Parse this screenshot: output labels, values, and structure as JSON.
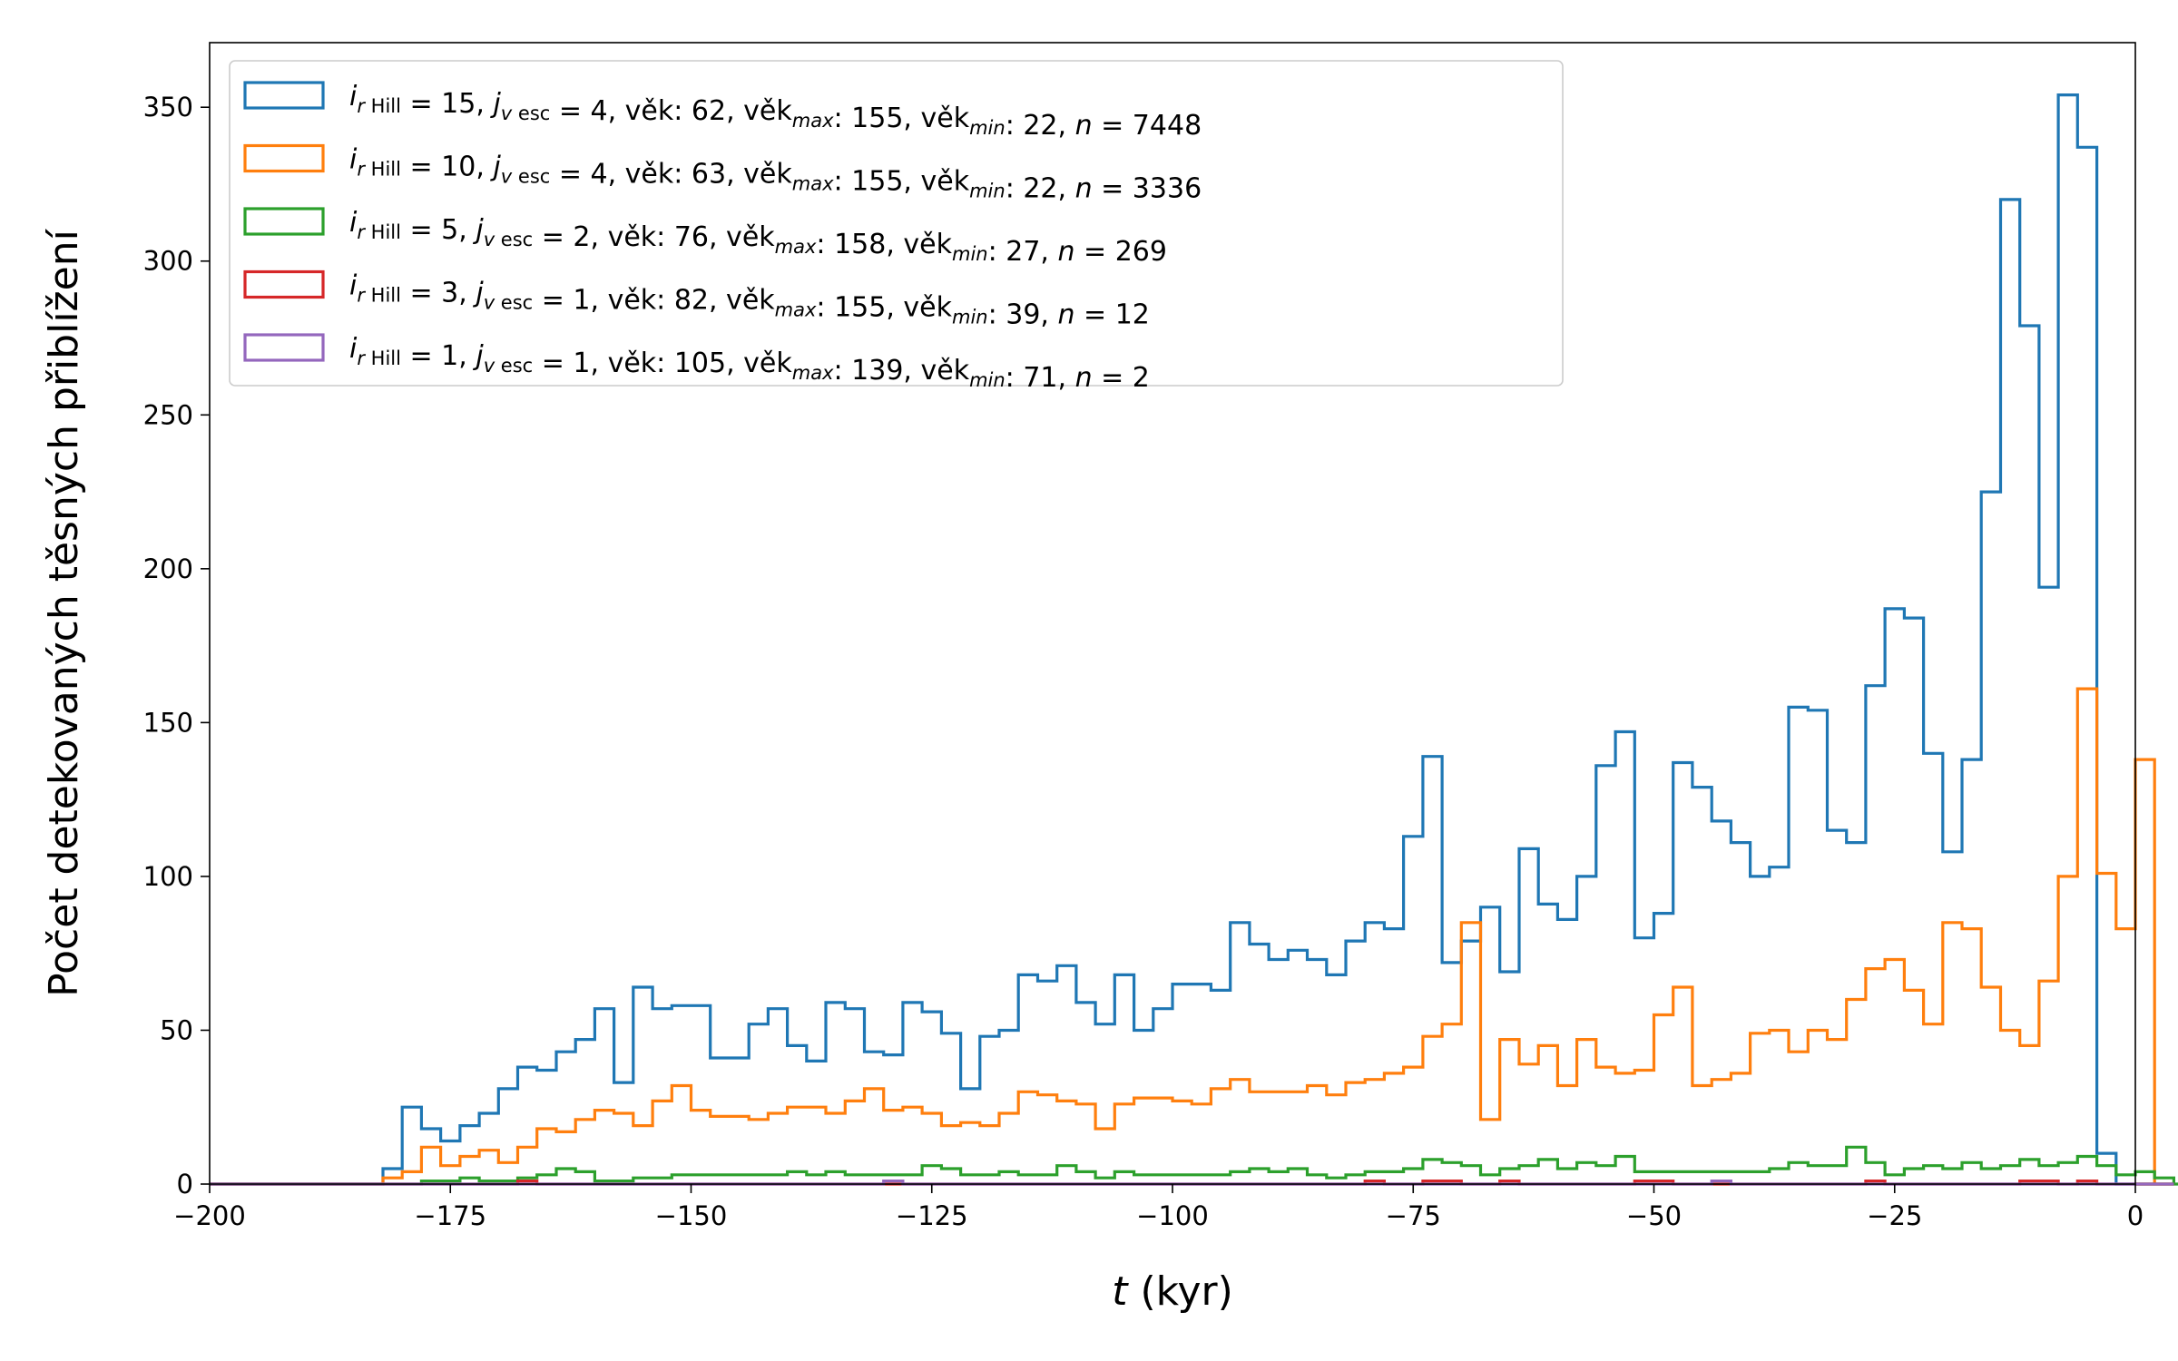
{
  "chart_data": {
    "type": "histogram-step",
    "xlabel_var": "t",
    "xlabel_unit": " (kyr)",
    "ylabel": "Počet detekovaných těsných přiblížení",
    "xlim": [
      -200,
      0
    ],
    "ylim": [
      0,
      371
    ],
    "xticks": [
      -200,
      -175,
      -150,
      -125,
      -100,
      -75,
      -50,
      -25,
      0
    ],
    "xtick_labels": [
      "−200",
      "−175",
      "−150",
      "−125",
      "−100",
      "−75",
      "−50",
      "−25",
      "0"
    ],
    "yticks": [
      0,
      50,
      100,
      150,
      200,
      250,
      300,
      350
    ],
    "ytick_labels": [
      "0",
      "50",
      "100",
      "150",
      "200",
      "250",
      "300",
      "350"
    ],
    "grid": false,
    "legend_position": "upper-left",
    "bins": {
      "start": -200,
      "width": 2
    },
    "series": [
      {
        "color": "#1f77b4",
        "legend": {
          "i": "15",
          "j": "4",
          "vek": "62",
          "vekmax": "155",
          "vekmin": "22",
          "n": "7448",
          "i_pad": "",
          "vek_pad": " "
        },
        "start_x": -182,
        "values": [
          5,
          25,
          18,
          14,
          19,
          23,
          31,
          38,
          37,
          43,
          47,
          57,
          33,
          64,
          57,
          58,
          58,
          41,
          41,
          52,
          57,
          45,
          40,
          59,
          57,
          43,
          42,
          59,
          56,
          49,
          31,
          48,
          50,
          68,
          66,
          71,
          59,
          52,
          68,
          50,
          57,
          65,
          65,
          63,
          85,
          78,
          73,
          76,
          73,
          68,
          79,
          85,
          83,
          113,
          139,
          72,
          79,
          90,
          69,
          109,
          91,
          86,
          100,
          136,
          147,
          80,
          88,
          137,
          129,
          118,
          111,
          100,
          103,
          155,
          154,
          115,
          111,
          162,
          187,
          184,
          140,
          108,
          138,
          225,
          320,
          279,
          194,
          354,
          337,
          10,
          0
        ]
      },
      {
        "color": "#ff7f0e",
        "legend": {
          "i": "10",
          "j": "4",
          "vek": "63",
          "vekmax": "155",
          "vekmin": "22",
          "n": "3336",
          "i_pad": "",
          "vek_pad": " "
        },
        "start_x": -182,
        "values": [
          2,
          4,
          12,
          6,
          9,
          11,
          7,
          12,
          18,
          17,
          21,
          24,
          23,
          19,
          27,
          32,
          24,
          22,
          22,
          21,
          23,
          25,
          25,
          23,
          27,
          31,
          24,
          25,
          23,
          19,
          20,
          19,
          23,
          30,
          29,
          27,
          26,
          18,
          26,
          28,
          28,
          27,
          26,
          31,
          34,
          30,
          30,
          30,
          32,
          29,
          33,
          34,
          36,
          38,
          48,
          52,
          85,
          21,
          47,
          39,
          45,
          32,
          47,
          38,
          36,
          37,
          55,
          64,
          32,
          34,
          36,
          49,
          50,
          43,
          50,
          47,
          60,
          70,
          73,
          63,
          52,
          85,
          83,
          64,
          50,
          45,
          66,
          100,
          161,
          101,
          83,
          138,
          0
        ]
      },
      {
        "color": "#2ca02c",
        "legend": {
          "i": "5",
          "j": "2",
          "vek": "76",
          "vekmax": "158",
          "vekmin": "27",
          "n": "269",
          "i_pad": "  ",
          "vek_pad": " "
        },
        "start_x": -182,
        "values": [
          0,
          0,
          1,
          1,
          2,
          1,
          1,
          2,
          3,
          5,
          4,
          1,
          1,
          2,
          2,
          3,
          3,
          3,
          3,
          3,
          3,
          4,
          3,
          4,
          3,
          3,
          3,
          3,
          6,
          5,
          3,
          3,
          4,
          3,
          3,
          6,
          4,
          2,
          4,
          3,
          3,
          3,
          3,
          3,
          4,
          5,
          4,
          5,
          3,
          2,
          3,
          4,
          4,
          5,
          8,
          7,
          6,
          3,
          5,
          6,
          8,
          5,
          7,
          6,
          9,
          4,
          4,
          4,
          4,
          4,
          4,
          4,
          5,
          7,
          6,
          6,
          12,
          7,
          3,
          5,
          6,
          5,
          7,
          5,
          6,
          8,
          6,
          7,
          9,
          6,
          3,
          4,
          2,
          0
        ]
      },
      {
        "color": "#d62728",
        "legend": {
          "i": "3",
          "j": "1",
          "vek": "82",
          "vekmax": "155",
          "vekmin": "39",
          "n": "12",
          "i_pad": "  ",
          "vek_pad": " "
        },
        "start_x": -182,
        "values": [
          0,
          0,
          0,
          0,
          0,
          0,
          0,
          1,
          0,
          0,
          0,
          0,
          0,
          0,
          0,
          0,
          0,
          0,
          0,
          0,
          0,
          0,
          0,
          0,
          0,
          0,
          0,
          0,
          0,
          0,
          0,
          0,
          0,
          0,
          0,
          0,
          0,
          0,
          0,
          0,
          0,
          0,
          0,
          0,
          0,
          0,
          0,
          0,
          0,
          0,
          0,
          1,
          0,
          0,
          1,
          1,
          0,
          0,
          1,
          0,
          0,
          0,
          0,
          0,
          0,
          1,
          1,
          0,
          0,
          0,
          0,
          0,
          0,
          0,
          0,
          0,
          0,
          1,
          0,
          0,
          0,
          0,
          0,
          0,
          0,
          1,
          1,
          0,
          1,
          0,
          0,
          0,
          0
        ]
      },
      {
        "color": "#9467bd",
        "legend": {
          "i": "1",
          "j": "1",
          "vek": "105",
          "vekmax": "139",
          "vekmin": "71",
          "n": "2",
          "i_pad": "  ",
          "vek_pad": ""
        },
        "start_x": -182,
        "values": [
          0,
          0,
          0,
          0,
          0,
          0,
          0,
          0,
          0,
          0,
          0,
          0,
          0,
          0,
          0,
          0,
          0,
          0,
          0,
          0,
          0,
          0,
          0,
          0,
          0,
          0,
          1,
          0,
          0,
          0,
          0,
          0,
          0,
          0,
          0,
          0,
          0,
          0,
          0,
          0,
          0,
          0,
          0,
          0,
          0,
          0,
          0,
          0,
          0,
          0,
          0,
          0,
          0,
          0,
          0,
          0,
          0,
          0,
          0,
          0,
          0,
          0,
          0,
          0,
          0,
          0,
          0,
          0,
          0,
          1,
          0,
          0,
          0,
          0,
          0,
          0,
          0,
          0,
          0,
          0,
          0,
          0,
          0,
          0,
          0,
          0,
          0,
          0,
          0,
          0,
          0,
          0,
          0
        ]
      }
    ]
  }
}
